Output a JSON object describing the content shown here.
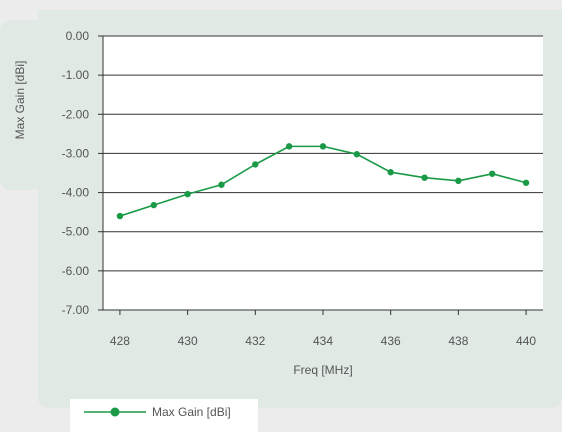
{
  "chart_data": {
    "type": "line",
    "title": "",
    "xlabel": "Freq [MHz]",
    "ylabel": "Max Gain  [dBi]",
    "xlim": [
      427.5,
      440.5
    ],
    "ylim": [
      -7.0,
      0.0
    ],
    "x_ticks": [
      428,
      430,
      432,
      434,
      436,
      438,
      440
    ],
    "y_ticks": [
      0.0,
      -1.0,
      -2.0,
      -3.0,
      -4.0,
      -5.0,
      -6.0,
      -7.0
    ],
    "x_tick_labels": [
      "428",
      "430",
      "432",
      "434",
      "436",
      "438",
      "440"
    ],
    "y_tick_labels": [
      "0.00",
      "-1.00",
      "-2.00",
      "-3.00",
      "-4.00",
      "-5.00",
      "-6.00",
      "-7.00"
    ],
    "grid": "horizontal",
    "legend_position": "bottom-left",
    "series": [
      {
        "name": "Max Gain [dBi]",
        "color": "#1a9a47",
        "x": [
          428,
          429,
          430,
          431,
          432,
          433,
          434,
          435,
          436,
          437,
          438,
          439,
          440
        ],
        "y": [
          -4.6,
          -4.32,
          -4.04,
          -3.8,
          -3.28,
          -2.82,
          -2.82,
          -3.02,
          -3.48,
          -3.62,
          -3.7,
          -3.52,
          -3.75
        ]
      }
    ]
  }
}
